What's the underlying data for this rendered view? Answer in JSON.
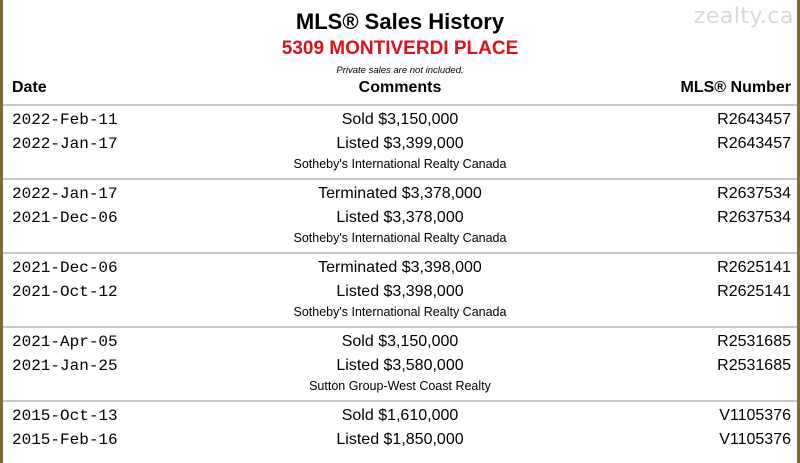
{
  "watermark": "zealty.ca",
  "title": "MLS® Sales History",
  "address": "5309 MONTIVERDI PLACE",
  "note": "Private sales are not included.",
  "colors": {
    "address": "#e0101a",
    "divider": "#c8c8c8",
    "frame": "#7a6a30"
  },
  "columns": {
    "date": "Date",
    "comments": "Comments",
    "mls": "MLS® Number"
  },
  "groups": [
    {
      "rows": [
        {
          "date": "2022-Feb-11",
          "comment": "Sold $3,150,000",
          "mls": "R2643457"
        },
        {
          "date": "2022-Jan-17",
          "comment": "Listed $3,399,000",
          "mls": "R2643457"
        }
      ],
      "agency": "Sotheby's International Realty Canada"
    },
    {
      "rows": [
        {
          "date": "2022-Jan-17",
          "comment": "Terminated $3,378,000",
          "mls": "R2637534"
        },
        {
          "date": "2021-Dec-06",
          "comment": "Listed $3,378,000",
          "mls": "R2637534"
        }
      ],
      "agency": "Sotheby's International Realty Canada"
    },
    {
      "rows": [
        {
          "date": "2021-Dec-06",
          "comment": "Terminated $3,398,000",
          "mls": "R2625141"
        },
        {
          "date": "2021-Oct-12",
          "comment": "Listed $3,398,000",
          "mls": "R2625141"
        }
      ],
      "agency": "Sotheby's International Realty Canada"
    },
    {
      "rows": [
        {
          "date": "2021-Apr-05",
          "comment": "Sold $3,150,000",
          "mls": "R2531685"
        },
        {
          "date": "2021-Jan-25",
          "comment": "Listed $3,580,000",
          "mls": "R2531685"
        }
      ],
      "agency": "Sutton Group-West Coast Realty"
    },
    {
      "rows": [
        {
          "date": "2015-Oct-13",
          "comment": "Sold $1,610,000",
          "mls": "V1105376"
        },
        {
          "date": "2015-Feb-16",
          "comment": "Listed $1,850,000",
          "mls": "V1105376"
        }
      ],
      "agency": ""
    }
  ]
}
